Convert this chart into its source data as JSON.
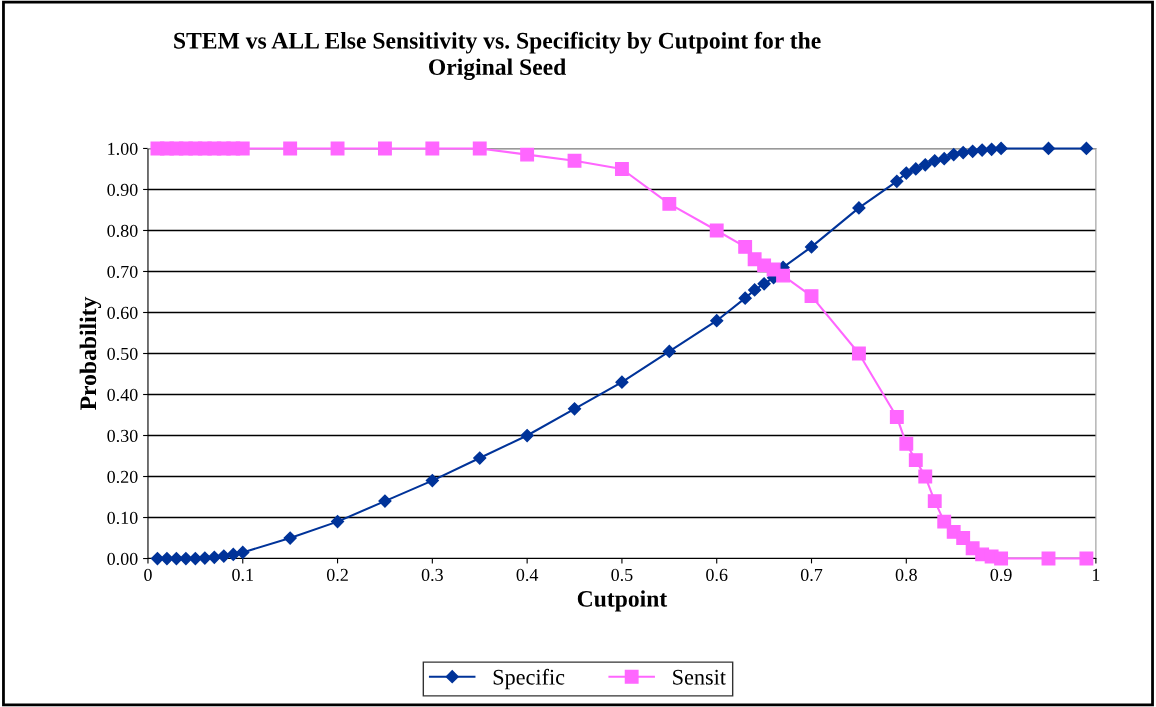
{
  "chart_data": {
    "type": "line",
    "title": "STEM vs ALL Else Sensitivity vs. Specificity by Cutpoint for the\nOriginal Seed",
    "xlabel": "Cutpoint",
    "ylabel": "Probability",
    "x": [
      0.01,
      0.02,
      0.03,
      0.04,
      0.05,
      0.06,
      0.07,
      0.08,
      0.09,
      0.1,
      0.15,
      0.2,
      0.25,
      0.3,
      0.35,
      0.4,
      0.45,
      0.5,
      0.55,
      0.6,
      0.63,
      0.64,
      0.65,
      0.66,
      0.67,
      0.7,
      0.75,
      0.79,
      0.8,
      0.81,
      0.82,
      0.83,
      0.84,
      0.85,
      0.86,
      0.87,
      0.88,
      0.89,
      0.9,
      0.95,
      0.99
    ],
    "series": [
      {
        "name": "Specific",
        "color": "#003399",
        "marker": "diamond",
        "values": [
          0,
          0,
          0,
          0,
          0,
          0.001,
          0.003,
          0.006,
          0.01,
          0.015,
          0.05,
          0.09,
          0.14,
          0.19,
          0.245,
          0.3,
          0.365,
          0.43,
          0.505,
          0.58,
          0.635,
          0.655,
          0.67,
          0.685,
          0.71,
          0.76,
          0.855,
          0.92,
          0.94,
          0.95,
          0.96,
          0.97,
          0.975,
          0.985,
          0.99,
          0.993,
          0.996,
          0.998,
          1,
          1,
          1
        ]
      },
      {
        "name": "Sensit",
        "color": "#ff66ff",
        "marker": "square",
        "values": [
          1,
          1,
          1,
          1,
          1,
          1,
          1,
          1,
          1,
          1,
          1,
          1,
          1,
          1,
          1,
          0.985,
          0.97,
          0.95,
          0.865,
          0.8,
          0.76,
          0.73,
          0.715,
          0.705,
          0.69,
          0.64,
          0.5,
          0.345,
          0.28,
          0.24,
          0.2,
          0.14,
          0.09,
          0.065,
          0.05,
          0.025,
          0.01,
          0.005,
          0,
          0,
          0
        ]
      }
    ],
    "xlim": [
      0,
      1
    ],
    "xticks": [
      0,
      0.1,
      0.2,
      0.3,
      0.4,
      0.5,
      0.6,
      0.7,
      0.8,
      0.9,
      1
    ],
    "ylim": [
      0,
      1
    ],
    "yticks": [
      {
        "value": 0,
        "label": "0.00"
      },
      {
        "value": 0.1,
        "label": "0.10"
      },
      {
        "value": 0.2,
        "label": "0.20"
      },
      {
        "value": 0.3,
        "label": "0.30"
      },
      {
        "value": 0.4,
        "label": "0.40"
      },
      {
        "value": 0.5,
        "label": "0.50"
      },
      {
        "value": 0.6,
        "label": "0.60"
      },
      {
        "value": 0.7,
        "label": "0.70"
      },
      {
        "value": 0.8,
        "label": "0.80"
      },
      {
        "value": 0.9,
        "label": "0.90"
      },
      {
        "value": 1,
        "label": "1.00"
      }
    ],
    "grid": "y",
    "legend": "bottom",
    "line_style": "solid"
  }
}
